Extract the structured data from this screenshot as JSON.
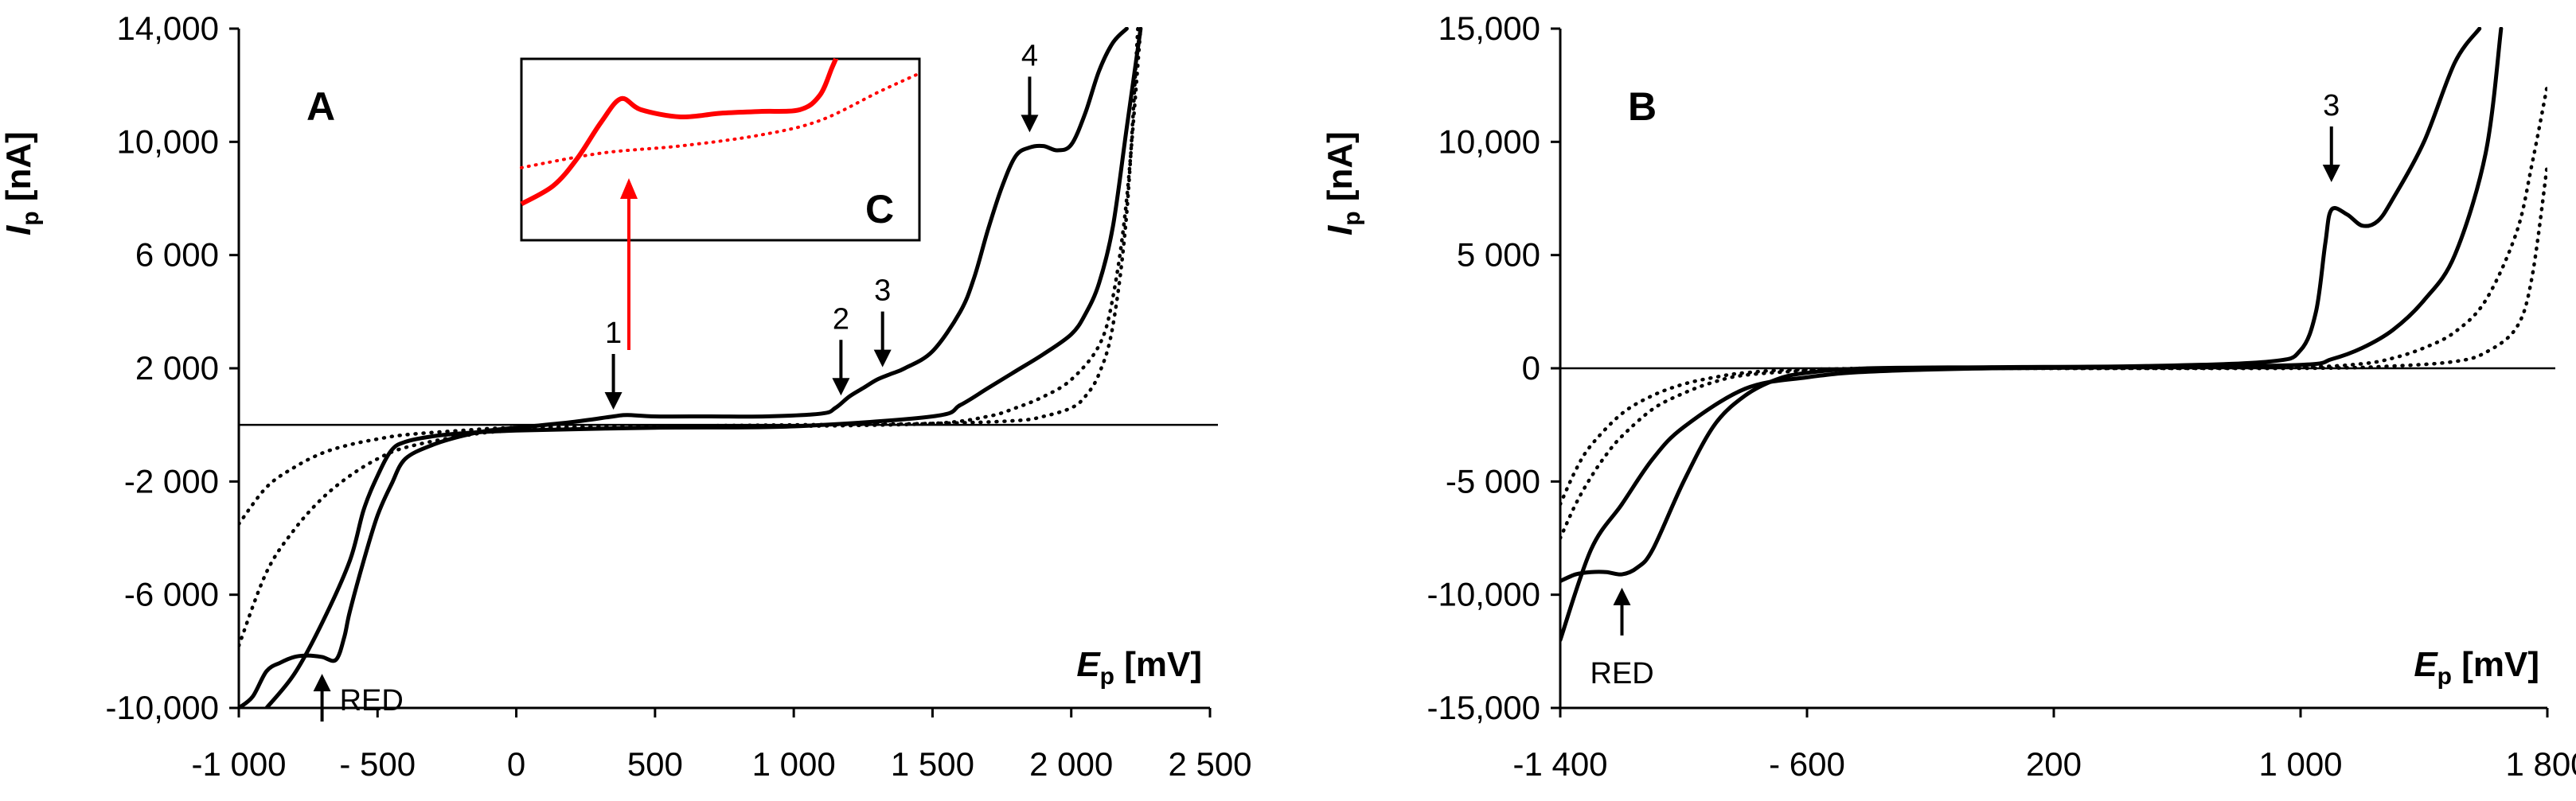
{
  "colors": {
    "curve": "#000000",
    "axis": "#000000",
    "inset_curve": "#ff0000",
    "inset_arrow": "#ff0000"
  },
  "chart_data": [
    {
      "type": "line",
      "panel": "A",
      "xlabel": "E",
      "xlabel_sub": "p",
      "xlabel_unit": "[mV]",
      "ylabel": "I",
      "ylabel_sub": "p",
      "ylabel_unit": "[nA]",
      "xlim": [
        -1000,
        2500
      ],
      "ylim": [
        -10000,
        14000
      ],
      "xticks": [
        -1000,
        -500,
        0,
        500,
        1000,
        1500,
        2000,
        2500
      ],
      "xtick_labels": [
        "-1 000",
        "- 500",
        "0",
        "500",
        "1 000",
        "1 500",
        "2 000",
        "2 500"
      ],
      "yticks": [
        -10000,
        -6000,
        -2000,
        2000,
        6000,
        10000,
        14000
      ],
      "ytick_labels": [
        "-10,000",
        "-6 000",
        "-2 000",
        "2 000",
        "6 000",
        "10,000",
        "14,000"
      ],
      "zero_line_y": 0,
      "series": [
        {
          "name": "solid-forward",
          "style": "solid",
          "x": [
            -1000,
            -950,
            -900,
            -850,
            -800,
            -750,
            -700,
            -650,
            -620,
            -600,
            -550,
            -500,
            -450,
            -400,
            -300,
            -200,
            -100,
            0,
            200,
            350,
            400,
            500,
            700,
            900,
            1100,
            1150,
            1200,
            1250,
            1300,
            1350,
            1400,
            1500,
            1600,
            1650,
            1700,
            1750,
            1800,
            1850,
            1900,
            1950,
            2000,
            2050,
            2100,
            2150,
            2200
          ],
          "y": [
            -10000,
            -9600,
            -8700,
            -8400,
            -8200,
            -8150,
            -8200,
            -8300,
            -7500,
            -6600,
            -4800,
            -3200,
            -2100,
            -1200,
            -700,
            -400,
            -200,
            -100,
            100,
            300,
            350,
            300,
            300,
            300,
            400,
            600,
            1000,
            1300,
            1600,
            1800,
            2000,
            2600,
            4000,
            5200,
            6900,
            8400,
            9500,
            9800,
            9850,
            9700,
            9900,
            11000,
            12500,
            13500,
            14000
          ]
        },
        {
          "name": "solid-backward",
          "style": "solid",
          "x": [
            -900,
            -800,
            -700,
            -600,
            -550,
            -500,
            -450,
            -400,
            -300,
            -200,
            0,
            500,
            1000,
            1500,
            1600,
            1700,
            1800,
            1900,
            2000,
            2050,
            2100,
            2150,
            2200,
            2250
          ],
          "y": [
            -10000,
            -8800,
            -7000,
            -4800,
            -3000,
            -1800,
            -900,
            -600,
            -400,
            -300,
            -200,
            -100,
            -50,
            300,
            700,
            1300,
            1900,
            2500,
            3200,
            3900,
            5000,
            7000,
            10500,
            14000
          ]
        },
        {
          "name": "dotted-1",
          "style": "dotted",
          "x": [
            -1000,
            -900,
            -800,
            -700,
            -600,
            -500,
            -400,
            -200,
            0,
            500,
            1000,
            1500,
            1700,
            1800,
            1900,
            2000,
            2100,
            2150,
            2200,
            2250
          ],
          "y": [
            -7800,
            -5200,
            -3700,
            -2600,
            -1800,
            -1200,
            -800,
            -400,
            -200,
            -100,
            -50,
            50,
            300,
            600,
            1000,
            1600,
            2800,
            4500,
            8000,
            14000
          ]
        },
        {
          "name": "dotted-2",
          "style": "dotted",
          "x": [
            -1000,
            -900,
            -800,
            -700,
            -600,
            -500,
            -400,
            -200,
            0,
            500,
            1000,
            1500,
            1800,
            1900,
            2000,
            2050,
            2100,
            2150,
            2200,
            2240
          ],
          "y": [
            -3500,
            -2200,
            -1500,
            -1000,
            -700,
            -500,
            -350,
            -200,
            -100,
            -50,
            0,
            50,
            150,
            300,
            600,
            1000,
            1800,
            3500,
            7500,
            14000
          ]
        }
      ],
      "peaks": [
        {
          "label": "1",
          "x": 350,
          "y": 200,
          "arrow": "down"
        },
        {
          "label": "2",
          "x": 1170,
          "y": 700,
          "arrow": "down"
        },
        {
          "label": "3",
          "x": 1320,
          "y": 1700,
          "arrow": "down"
        },
        {
          "label": "4",
          "x": 1850,
          "y": 10000,
          "arrow": "down"
        },
        {
          "label": "RED",
          "x": -700,
          "y": -8400,
          "arrow": "up"
        }
      ],
      "inset": {
        "label": "C",
        "arrow_label": "1",
        "solid_xy": [
          [
            0,
            0.2
          ],
          [
            0.08,
            0.3
          ],
          [
            0.14,
            0.45
          ],
          [
            0.2,
            0.65
          ],
          [
            0.25,
            0.78
          ],
          [
            0.3,
            0.72
          ],
          [
            0.4,
            0.68
          ],
          [
            0.5,
            0.7
          ],
          [
            0.6,
            0.71
          ],
          [
            0.7,
            0.72
          ],
          [
            0.75,
            0.8
          ],
          [
            0.78,
            0.95
          ],
          [
            0.79,
            1.0
          ]
        ],
        "dotted_xy": [
          [
            0,
            0.4
          ],
          [
            0.2,
            0.48
          ],
          [
            0.4,
            0.52
          ],
          [
            0.6,
            0.58
          ],
          [
            0.75,
            0.66
          ],
          [
            0.9,
            0.82
          ],
          [
            1.0,
            0.92
          ]
        ]
      }
    },
    {
      "type": "line",
      "panel": "B",
      "xlabel": "E",
      "xlabel_sub": "p",
      "xlabel_unit": "[mV]",
      "ylabel": "I",
      "ylabel_sub": "p",
      "ylabel_unit": "[nA]",
      "xlim": [
        -1400,
        1800
      ],
      "ylim": [
        -15000,
        15000
      ],
      "xticks": [
        -1400,
        -600,
        200,
        1000,
        1800
      ],
      "xtick_labels": [
        "-1 400",
        "- 600",
        "200",
        "1 000",
        "1 800"
      ],
      "yticks": [
        -15000,
        -10000,
        -5000,
        0,
        5000,
        10000,
        15000
      ],
      "ytick_labels": [
        "-15,000",
        "-10,000",
        "-5 000",
        "0",
        "5 000",
        "10,000",
        "15,000"
      ],
      "zero_line_y": 0,
      "series": [
        {
          "name": "solid-forward",
          "style": "solid",
          "x": [
            -1400,
            -1350,
            -1300,
            -1250,
            -1200,
            -1150,
            -1100,
            -1000,
            -900,
            -800,
            -700,
            -600,
            -400,
            0,
            500,
            900,
            1000,
            1050,
            1080,
            1100,
            1150,
            1200,
            1250,
            1300,
            1400,
            1500,
            1580
          ],
          "y": [
            -9400,
            -9100,
            -9000,
            -9000,
            -9100,
            -8800,
            -8000,
            -5000,
            -2500,
            -1200,
            -500,
            -200,
            0,
            50,
            100,
            300,
            800,
            2500,
            5500,
            7000,
            6800,
            6300,
            6500,
            7500,
            10000,
            13500,
            15000
          ]
        },
        {
          "name": "solid-backward",
          "style": "solid",
          "x": [
            -1400,
            -1300,
            -1200,
            -1100,
            -1000,
            -800,
            -600,
            -400,
            0,
            500,
            1000,
            1100,
            1200,
            1300,
            1400,
            1500,
            1600,
            1650
          ],
          "y": [
            -12000,
            -8000,
            -6000,
            -4000,
            -2600,
            -900,
            -400,
            -150,
            0,
            50,
            150,
            400,
            900,
            1700,
            3000,
            5000,
            9500,
            15000
          ]
        },
        {
          "name": "dotted-1",
          "style": "dotted",
          "x": [
            -1400,
            -1350,
            -1300,
            -1250,
            -1200,
            -1100,
            -1000,
            -900,
            -800,
            -600,
            -400,
            0,
            500,
            1000,
            1200,
            1300,
            1400,
            1500,
            1600,
            1700,
            1750,
            1800
          ],
          "y": [
            -7500,
            -6000,
            -4800,
            -3800,
            -3000,
            -1800,
            -1100,
            -600,
            -300,
            -100,
            0,
            0,
            0,
            50,
            200,
            450,
            900,
            1600,
            3000,
            6000,
            9000,
            12500
          ]
        },
        {
          "name": "dotted-2",
          "style": "dotted",
          "x": [
            -1400,
            -1350,
            -1300,
            -1200,
            -1100,
            -1000,
            -900,
            -800,
            -600,
            0,
            1000,
            1300,
            1500,
            1600,
            1700,
            1750,
            1800
          ],
          "y": [
            -6000,
            -4500,
            -3400,
            -2000,
            -1200,
            -700,
            -400,
            -200,
            -50,
            0,
            0,
            100,
            300,
            700,
            1800,
            4000,
            9000
          ]
        }
      ],
      "peaks": [
        {
          "label": "3",
          "x": 1100,
          "y": 7800,
          "arrow": "down"
        },
        {
          "label": "RED",
          "x": -1200,
          "y": -9200,
          "arrow": "up"
        }
      ]
    }
  ]
}
